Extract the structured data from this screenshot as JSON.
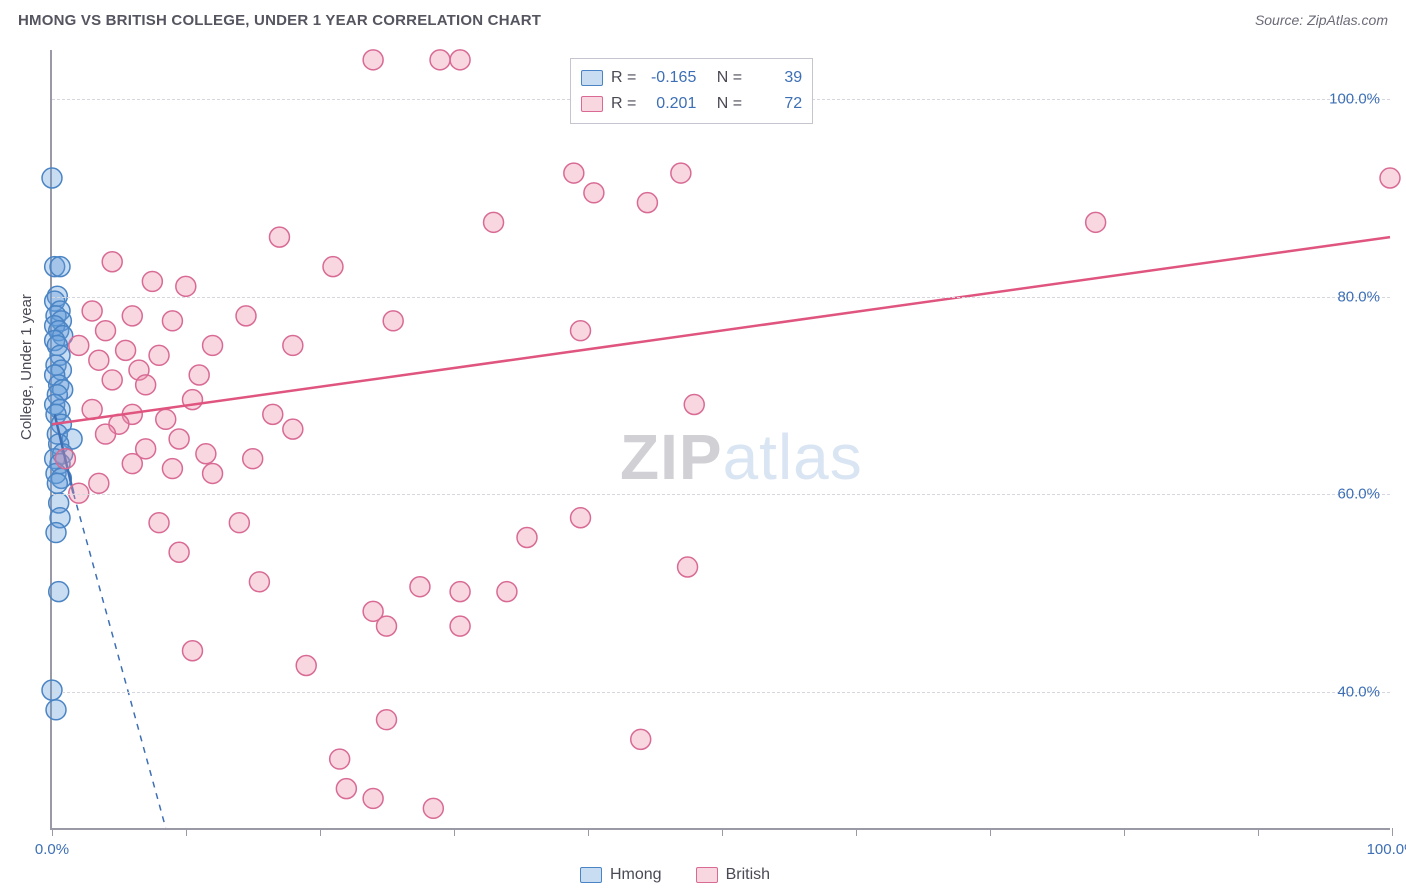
{
  "header": {
    "title": "HMONG VS BRITISH COLLEGE, UNDER 1 YEAR CORRELATION CHART",
    "source_label": "Source: ZipAtlas.com"
  },
  "watermark": {
    "part1": "ZIP",
    "part2": "atlas"
  },
  "axes": {
    "ylabel": "College, Under 1 year",
    "x_min_label": "0.0%",
    "x_max_label": "100.0%",
    "y_ticks": [
      {
        "value": 40,
        "label": "40.0%"
      },
      {
        "value": 60,
        "label": "60.0%"
      },
      {
        "value": 80,
        "label": "80.0%"
      },
      {
        "value": 100,
        "label": "100.0%"
      }
    ],
    "x_ticks_pct": [
      0,
      10,
      20,
      30,
      40,
      50,
      60,
      70,
      80,
      90,
      100
    ],
    "xlim": [
      0,
      100
    ],
    "ylim": [
      26,
      105
    ],
    "grid_color": "#d6d6de",
    "axis_color": "#9a9aa6",
    "label_color": "#3d6fb5",
    "label_fontsize": 15
  },
  "legend_stats": {
    "rows": [
      {
        "swatch": "blue",
        "r_label": "R =",
        "r_value": "-0.165",
        "n_label": "N =",
        "n_value": "39"
      },
      {
        "swatch": "pink",
        "r_label": "R =",
        "r_value": "0.201",
        "n_label": "N =",
        "n_value": "72"
      }
    ]
  },
  "legend_series": {
    "items": [
      {
        "swatch": "blue",
        "label": "Hmong"
      },
      {
        "swatch": "pink",
        "label": "British"
      }
    ]
  },
  "chart": {
    "type": "scatter",
    "background_color": "#ffffff",
    "marker_radius": 10,
    "marker_stroke_width": 1.5,
    "series": [
      {
        "name": "Hmong",
        "fill": "rgba(97,155,219,0.35)",
        "stroke": "#4a84c4",
        "points": [
          [
            0.0,
            92.0
          ],
          [
            0.2,
            83.0
          ],
          [
            0.6,
            83.0
          ],
          [
            0.4,
            80.0
          ],
          [
            0.2,
            79.5
          ],
          [
            0.6,
            78.5
          ],
          [
            0.3,
            78.0
          ],
          [
            0.7,
            77.5
          ],
          [
            0.2,
            77.0
          ],
          [
            0.5,
            76.5
          ],
          [
            0.8,
            76.0
          ],
          [
            0.2,
            75.5
          ],
          [
            0.4,
            75.0
          ],
          [
            0.6,
            74.0
          ],
          [
            0.3,
            73.0
          ],
          [
            0.7,
            72.5
          ],
          [
            0.2,
            72.0
          ],
          [
            0.5,
            71.0
          ],
          [
            0.8,
            70.5
          ],
          [
            0.4,
            70.0
          ],
          [
            0.2,
            69.0
          ],
          [
            0.6,
            68.5
          ],
          [
            0.3,
            68.0
          ],
          [
            0.7,
            67.0
          ],
          [
            0.4,
            66.0
          ],
          [
            1.5,
            65.5
          ],
          [
            0.5,
            65.0
          ],
          [
            0.8,
            64.0
          ],
          [
            0.2,
            63.5
          ],
          [
            0.6,
            63.0
          ],
          [
            0.3,
            62.0
          ],
          [
            0.7,
            61.5
          ],
          [
            0.4,
            61.0
          ],
          [
            0.5,
            59.0
          ],
          [
            0.6,
            57.5
          ],
          [
            0.3,
            56.0
          ],
          [
            0.5,
            50.0
          ],
          [
            0.0,
            40.0
          ],
          [
            0.3,
            38.0
          ]
        ],
        "trend": {
          "x1": 0.2,
          "y1": 68.0,
          "x2": 1.6,
          "y2": 60.0,
          "color": "#3d6fb5",
          "width": 2.5
        },
        "trend_ext": {
          "x1": 1.6,
          "y1": 60.0,
          "x2": 8.5,
          "y2": 26.0,
          "dash": "6 6"
        }
      },
      {
        "name": "British",
        "fill": "rgba(236,140,168,0.35)",
        "stroke": "#d86a94",
        "points": [
          [
            24.0,
            104.0
          ],
          [
            29.0,
            104.0
          ],
          [
            30.5,
            104.0
          ],
          [
            39.0,
            92.5
          ],
          [
            47.0,
            92.5
          ],
          [
            40.5,
            90.5
          ],
          [
            44.5,
            89.5
          ],
          [
            17.0,
            86.0
          ],
          [
            33.0,
            87.5
          ],
          [
            100.0,
            92.0
          ],
          [
            78.0,
            87.5
          ],
          [
            4.5,
            83.5
          ],
          [
            21.0,
            83.0
          ],
          [
            7.5,
            81.5
          ],
          [
            10.0,
            81.0
          ],
          [
            3.0,
            78.5
          ],
          [
            6.0,
            78.0
          ],
          [
            9.0,
            77.5
          ],
          [
            14.5,
            78.0
          ],
          [
            25.5,
            77.5
          ],
          [
            4.0,
            76.5
          ],
          [
            39.5,
            76.5
          ],
          [
            2.0,
            75.0
          ],
          [
            12.0,
            75.0
          ],
          [
            5.5,
            74.5
          ],
          [
            8.0,
            74.0
          ],
          [
            3.5,
            73.5
          ],
          [
            6.5,
            72.5
          ],
          [
            11.0,
            72.0
          ],
          [
            18.0,
            75.0
          ],
          [
            4.5,
            71.5
          ],
          [
            7.0,
            71.0
          ],
          [
            10.5,
            69.5
          ],
          [
            48.0,
            69.0
          ],
          [
            3.0,
            68.5
          ],
          [
            6.0,
            68.0
          ],
          [
            16.5,
            68.0
          ],
          [
            8.5,
            67.5
          ],
          [
            5.0,
            67.0
          ],
          [
            18.0,
            66.5
          ],
          [
            4.0,
            66.0
          ],
          [
            9.5,
            65.5
          ],
          [
            7.0,
            64.5
          ],
          [
            11.5,
            64.0
          ],
          [
            15.0,
            63.5
          ],
          [
            6.0,
            63.0
          ],
          [
            9.0,
            62.5
          ],
          [
            12.0,
            62.0
          ],
          [
            2.0,
            60.0
          ],
          [
            3.5,
            61.0
          ],
          [
            8.0,
            57.0
          ],
          [
            14.0,
            57.0
          ],
          [
            39.5,
            57.5
          ],
          [
            35.5,
            55.5
          ],
          [
            9.5,
            54.0
          ],
          [
            47.5,
            52.5
          ],
          [
            15.5,
            51.0
          ],
          [
            27.5,
            50.5
          ],
          [
            30.5,
            50.0
          ],
          [
            34.0,
            50.0
          ],
          [
            24.0,
            48.0
          ],
          [
            25.0,
            46.5
          ],
          [
            30.5,
            46.5
          ],
          [
            10.5,
            44.0
          ],
          [
            19.0,
            42.5
          ],
          [
            44.0,
            35.0
          ],
          [
            25.0,
            37.0
          ],
          [
            21.5,
            33.0
          ],
          [
            22.0,
            30.0
          ],
          [
            24.0,
            29.0
          ],
          [
            28.5,
            28.0
          ],
          [
            1.0,
            63.5
          ]
        ],
        "trend": {
          "x1": 0.0,
          "y1": 67.0,
          "x2": 100.0,
          "y2": 86.0,
          "color": "#e0557f",
          "width": 2.5
        }
      }
    ]
  }
}
